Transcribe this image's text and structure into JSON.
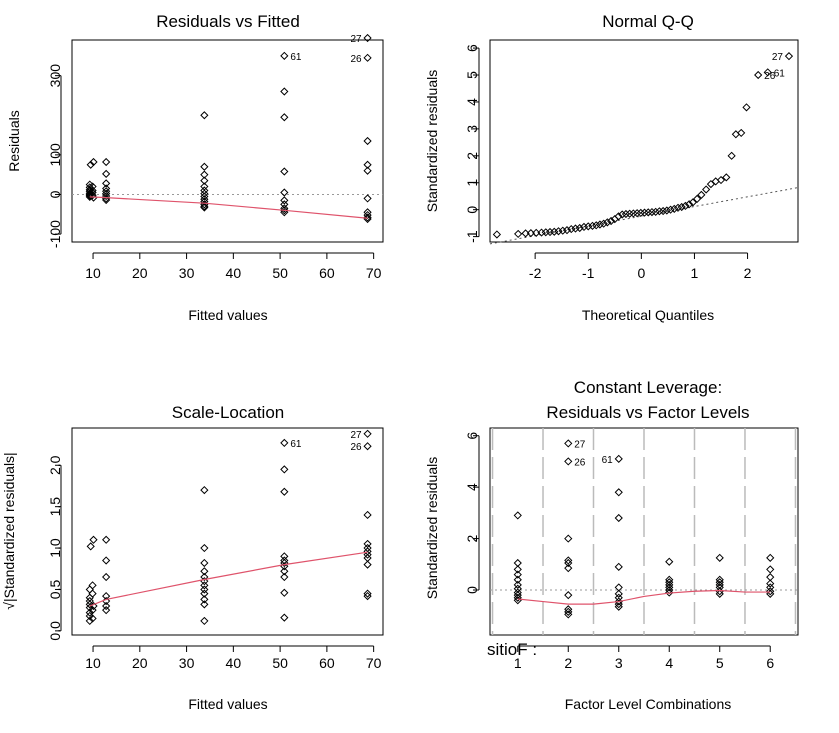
{
  "chart_data": [
    {
      "type": "scatter",
      "title": "Residuals vs Fitted",
      "xlabel": "Fitted values",
      "ylabel": "Residuals",
      "xlim": [
        5.5,
        72
      ],
      "ylim": [
        -120,
        390
      ],
      "xticks": [
        10,
        20,
        30,
        40,
        50,
        60,
        70
      ],
      "yticks": [
        -100,
        0,
        100,
        300
      ],
      "grid": false,
      "points": [
        [
          9.3,
          25
        ],
        [
          9.3,
          18
        ],
        [
          9.3,
          12
        ],
        [
          9.3,
          8
        ],
        [
          9.3,
          3
        ],
        [
          9.3,
          0
        ],
        [
          9.3,
          -3
        ],
        [
          9.3,
          -6
        ],
        [
          9.5,
          75
        ],
        [
          9.9,
          20
        ],
        [
          9.9,
          10
        ],
        [
          9.9,
          5
        ],
        [
          9.9,
          -2
        ],
        [
          10.1,
          82
        ],
        [
          10.1,
          -8
        ],
        [
          12.8,
          82
        ],
        [
          12.8,
          52
        ],
        [
          12.8,
          28
        ],
        [
          12.8,
          15
        ],
        [
          12.8,
          8
        ],
        [
          12.8,
          2
        ],
        [
          12.8,
          -4
        ],
        [
          12.8,
          -10
        ],
        [
          12.8,
          -14
        ],
        [
          33.8,
          200
        ],
        [
          33.8,
          70
        ],
        [
          33.8,
          50
        ],
        [
          33.8,
          35
        ],
        [
          33.8,
          20
        ],
        [
          33.8,
          10
        ],
        [
          33.8,
          2
        ],
        [
          33.8,
          -5
        ],
        [
          33.8,
          -12
        ],
        [
          33.8,
          -18
        ],
        [
          33.8,
          -25
        ],
        [
          33.8,
          -30
        ],
        [
          33.8,
          -33
        ],
        [
          50.9,
          350
        ],
        [
          50.9,
          260
        ],
        [
          50.9,
          195
        ],
        [
          50.9,
          58
        ],
        [
          50.9,
          5
        ],
        [
          50.9,
          -15
        ],
        [
          50.9,
          -25
        ],
        [
          50.9,
          -35
        ],
        [
          50.9,
          -40
        ],
        [
          50.9,
          -45
        ],
        [
          68.7,
          395
        ],
        [
          68.7,
          345
        ],
        [
          68.7,
          135
        ],
        [
          68.7,
          75
        ],
        [
          68.7,
          60
        ],
        [
          68.7,
          -10
        ],
        [
          68.7,
          -45
        ],
        [
          68.7,
          -52
        ],
        [
          68.7,
          -58
        ],
        [
          68.7,
          -62
        ]
      ],
      "smooth": [
        [
          9.3,
          -6
        ],
        [
          12.8,
          -8
        ],
        [
          33.8,
          -22
        ],
        [
          50.9,
          -40
        ],
        [
          68.7,
          -60
        ]
      ],
      "reference_y": 0,
      "labels": [
        {
          "text": "27",
          "x": 68.7,
          "y": 395,
          "side": "left"
        },
        {
          "text": "26",
          "x": 68.7,
          "y": 345,
          "side": "left"
        },
        {
          "text": "61",
          "x": 50.9,
          "y": 350,
          "side": "right"
        }
      ]
    },
    {
      "type": "scatter",
      "title": "Normal Q-Q",
      "xlabel": "Theoretical Quantiles",
      "ylabel": "Standardized residuals",
      "xlim": [
        -2.85,
        2.95
      ],
      "ylim": [
        -1.2,
        6.3
      ],
      "xticks": [
        -2,
        -1,
        0,
        1,
        2
      ],
      "yticks": [
        -1,
        0,
        1,
        2,
        3,
        4,
        5,
        6
      ],
      "grid": false,
      "qq_line": [
        [
          -2.85,
          -1.27
        ],
        [
          2.95,
          0.82
        ]
      ],
      "qq_points": [
        [
          -2.72,
          -0.92
        ],
        [
          -2.32,
          -0.9
        ],
        [
          -2.18,
          -0.88
        ],
        [
          -2.08,
          -0.87
        ],
        [
          -1.98,
          -0.86
        ],
        [
          -1.88,
          -0.85
        ],
        [
          -1.8,
          -0.84
        ],
        [
          -1.72,
          -0.83
        ],
        [
          -1.64,
          -0.82
        ],
        [
          -1.56,
          -0.8
        ],
        [
          -1.48,
          -0.78
        ],
        [
          -1.4,
          -0.76
        ],
        [
          -1.32,
          -0.72
        ],
        [
          -1.24,
          -0.7
        ],
        [
          -1.16,
          -0.68
        ],
        [
          -1.08,
          -0.64
        ],
        [
          -1.0,
          -0.62
        ],
        [
          -0.92,
          -0.6
        ],
        [
          -0.85,
          -0.58
        ],
        [
          -0.78,
          -0.55
        ],
        [
          -0.71,
          -0.52
        ],
        [
          -0.64,
          -0.47
        ],
        [
          -0.57,
          -0.42
        ],
        [
          -0.5,
          -0.35
        ],
        [
          -0.43,
          -0.25
        ],
        [
          -0.36,
          -0.18
        ],
        [
          -0.29,
          -0.16
        ],
        [
          -0.22,
          -0.15
        ],
        [
          -0.15,
          -0.14
        ],
        [
          -0.08,
          -0.13
        ],
        [
          -0.01,
          -0.12
        ],
        [
          0.06,
          -0.11
        ],
        [
          0.13,
          -0.1
        ],
        [
          0.2,
          -0.09
        ],
        [
          0.27,
          -0.08
        ],
        [
          0.34,
          -0.06
        ],
        [
          0.41,
          -0.05
        ],
        [
          0.48,
          -0.03
        ],
        [
          0.55,
          0.0
        ],
        [
          0.62,
          0.03
        ],
        [
          0.69,
          0.07
        ],
        [
          0.76,
          0.1
        ],
        [
          0.83,
          0.14
        ],
        [
          0.9,
          0.2
        ],
        [
          0.97,
          0.27
        ],
        [
          1.05,
          0.4
        ],
        [
          1.13,
          0.55
        ],
        [
          1.22,
          0.75
        ],
        [
          1.31,
          0.95
        ],
        [
          1.4,
          1.05
        ],
        [
          1.5,
          1.1
        ],
        [
          1.6,
          1.2
        ],
        [
          1.7,
          2.0
        ],
        [
          1.78,
          2.8
        ],
        [
          1.88,
          2.85
        ],
        [
          1.98,
          3.8
        ],
        [
          2.2,
          5.0
        ],
        [
          2.38,
          5.1
        ],
        [
          2.78,
          5.7
        ]
      ],
      "labels": [
        {
          "text": "27",
          "x": 2.78,
          "y": 5.7,
          "side": "left"
        },
        {
          "text": "61",
          "x": 2.38,
          "y": 5.1,
          "side": "right"
        },
        {
          "text": "26",
          "x": 2.2,
          "y": 5.0,
          "side": "right"
        }
      ]
    },
    {
      "type": "scatter",
      "title": "Scale-Location",
      "xlabel": "Fitted values",
      "ylabel": "√|Standardized residuals|",
      "xlim": [
        5.5,
        72
      ],
      "ylim": [
        -0.05,
        2.45
      ],
      "xticks": [
        10,
        20,
        30,
        40,
        50,
        60,
        70
      ],
      "yticks": [
        0.0,
        0.5,
        1.0,
        1.5,
        2.0
      ],
      "grid": false,
      "points": [
        [
          9.3,
          0.12
        ],
        [
          9.3,
          0.18
        ],
        [
          9.3,
          0.22
        ],
        [
          9.3,
          0.28
        ],
        [
          9.3,
          0.32
        ],
        [
          9.3,
          0.36
        ],
        [
          9.3,
          0.4
        ],
        [
          9.3,
          0.5
        ],
        [
          9.5,
          1.02
        ],
        [
          9.9,
          0.15
        ],
        [
          9.9,
          0.25
        ],
        [
          9.9,
          0.45
        ],
        [
          9.9,
          0.55
        ],
        [
          10.1,
          1.1
        ],
        [
          10.1,
          0.3
        ],
        [
          12.8,
          1.1
        ],
        [
          12.8,
          0.85
        ],
        [
          12.8,
          0.65
        ],
        [
          12.8,
          0.42
        ],
        [
          12.8,
          0.36
        ],
        [
          12.8,
          0.3
        ],
        [
          12.8,
          0.25
        ],
        [
          33.8,
          1.7
        ],
        [
          33.8,
          1.0
        ],
        [
          33.8,
          0.82
        ],
        [
          33.8,
          0.72
        ],
        [
          33.8,
          0.65
        ],
        [
          33.8,
          0.6
        ],
        [
          33.8,
          0.55
        ],
        [
          33.8,
          0.5
        ],
        [
          33.8,
          0.45
        ],
        [
          33.8,
          0.38
        ],
        [
          33.8,
          0.32
        ],
        [
          33.8,
          0.12
        ],
        [
          50.9,
          2.27
        ],
        [
          50.9,
          1.95
        ],
        [
          50.9,
          1.68
        ],
        [
          50.9,
          0.9
        ],
        [
          50.9,
          0.85
        ],
        [
          50.9,
          0.82
        ],
        [
          50.9,
          0.78
        ],
        [
          50.9,
          0.72
        ],
        [
          50.9,
          0.65
        ],
        [
          50.9,
          0.46
        ],
        [
          50.9,
          0.16
        ],
        [
          68.7,
          2.38
        ],
        [
          68.7,
          2.23
        ],
        [
          68.7,
          1.4
        ],
        [
          68.7,
          1.05
        ],
        [
          68.7,
          1.0
        ],
        [
          68.7,
          0.96
        ],
        [
          68.7,
          0.92
        ],
        [
          68.7,
          0.88
        ],
        [
          68.7,
          0.8
        ],
        [
          68.7,
          0.45
        ],
        [
          68.7,
          0.42
        ]
      ],
      "smooth": [
        [
          9.3,
          0.3
        ],
        [
          12.8,
          0.38
        ],
        [
          33.8,
          0.62
        ],
        [
          50.9,
          0.8
        ],
        [
          68.7,
          0.95
        ]
      ],
      "labels": [
        {
          "text": "27",
          "x": 68.7,
          "y": 2.38,
          "side": "left"
        },
        {
          "text": "26",
          "x": 68.7,
          "y": 2.23,
          "side": "left"
        },
        {
          "text": "61",
          "x": 50.9,
          "y": 2.27,
          "side": "right"
        }
      ]
    },
    {
      "type": "scatter",
      "title": "Constant Leverage:",
      "subtitle": "Residuals vs Factor Levels",
      "xlabel": "Factor Level Combinations",
      "ylabel": "Standardized residuals",
      "factor_name": "sitioF :",
      "xlim": [
        0.45,
        6.55
      ],
      "ylim": [
        -1.75,
        6.3
      ],
      "xticks": [
        1,
        2,
        3,
        4,
        5,
        6
      ],
      "yticks": [
        0,
        2,
        4,
        6
      ],
      "vertical_dividers": [
        0.5,
        1.5,
        2.5,
        3.5,
        4.5,
        5.5,
        6.5
      ],
      "reference_y": 0,
      "points": [
        [
          1,
          2.9
        ],
        [
          1,
          1.05
        ],
        [
          1,
          0.8
        ],
        [
          1,
          0.6
        ],
        [
          1,
          0.4
        ],
        [
          1,
          0.2
        ],
        [
          1,
          0.05
        ],
        [
          1,
          -0.1
        ],
        [
          1,
          -0.2
        ],
        [
          1,
          -0.3
        ],
        [
          1,
          -0.4
        ],
        [
          2,
          5.7
        ],
        [
          2,
          5.0
        ],
        [
          2,
          2.0
        ],
        [
          2,
          1.15
        ],
        [
          2,
          1.05
        ],
        [
          2,
          0.85
        ],
        [
          2,
          -0.2
        ],
        [
          2,
          -0.75
        ],
        [
          2,
          -0.85
        ],
        [
          2,
          -0.95
        ],
        [
          3,
          5.1
        ],
        [
          3,
          3.8
        ],
        [
          3,
          2.8
        ],
        [
          3,
          0.9
        ],
        [
          3,
          0.1
        ],
        [
          3,
          -0.15
        ],
        [
          3,
          -0.3
        ],
        [
          3,
          -0.45
        ],
        [
          3,
          -0.55
        ],
        [
          3,
          -0.65
        ],
        [
          4,
          1.1
        ],
        [
          4,
          0.4
        ],
        [
          4,
          0.3
        ],
        [
          4,
          0.2
        ],
        [
          4,
          0.1
        ],
        [
          4,
          0.0
        ],
        [
          4,
          -0.1
        ],
        [
          5,
          1.25
        ],
        [
          5,
          0.4
        ],
        [
          5,
          0.3
        ],
        [
          5,
          0.2
        ],
        [
          5,
          0.1
        ],
        [
          5,
          -0.05
        ],
        [
          5,
          -0.15
        ],
        [
          6,
          1.25
        ],
        [
          6,
          0.8
        ],
        [
          6,
          0.5
        ],
        [
          6,
          0.25
        ],
        [
          6,
          0.1
        ],
        [
          6,
          -0.05
        ],
        [
          6,
          -0.15
        ]
      ],
      "smooth": [
        [
          1,
          -0.35
        ],
        [
          1.5,
          -0.45
        ],
        [
          2,
          -0.55
        ],
        [
          2.5,
          -0.55
        ],
        [
          3,
          -0.45
        ],
        [
          3.5,
          -0.25
        ],
        [
          4,
          -0.12
        ],
        [
          4.5,
          -0.05
        ],
        [
          5,
          -0.02
        ],
        [
          5.5,
          -0.08
        ],
        [
          6,
          -0.08
        ]
      ],
      "labels": [
        {
          "text": "27",
          "x": 2,
          "y": 5.7,
          "side": "right"
        },
        {
          "text": "26",
          "x": 2,
          "y": 5.0,
          "side": "right"
        },
        {
          "text": "61",
          "x": 3,
          "y": 5.1,
          "side": "left"
        }
      ]
    }
  ]
}
